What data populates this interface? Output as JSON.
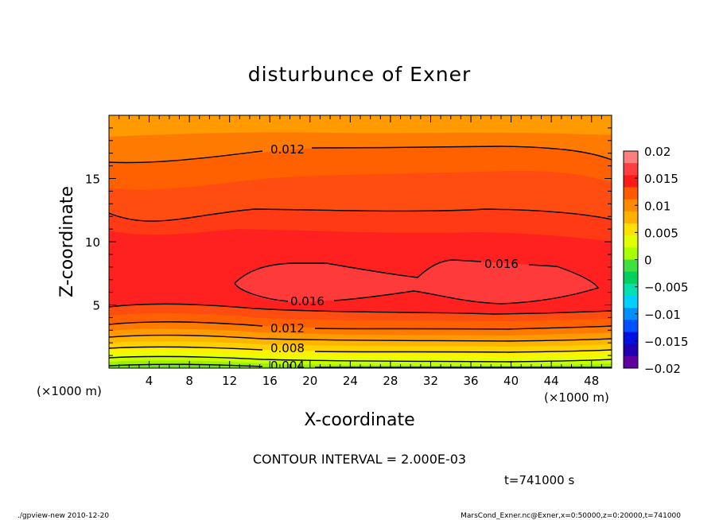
{
  "chart_data": {
    "type": "contour",
    "title": "disturbunce of Exner",
    "xlabel": "X-coordinate",
    "ylabel": "Z-coordinate",
    "x_unit": "(×1000 m)",
    "x_unit_right": "(×1000 m)",
    "y_unit": "(×1000 m)",
    "xlim": [
      0,
      50
    ],
    "ylim": [
      0,
      20
    ],
    "x_ticks": [
      "4",
      "8",
      "12",
      "16",
      "20",
      "24",
      "28",
      "32",
      "36",
      "40",
      "44",
      "48"
    ],
    "y_ticks": [
      "5",
      "10",
      "15"
    ],
    "colorbar": {
      "labels": [
        "0.02",
        "0.015",
        "0.01",
        "0.005",
        "0",
        "−0.005",
        "−0.01",
        "−0.015",
        "−0.02"
      ],
      "range": [
        -0.02,
        0.02
      ],
      "colors_top_to_bottom": [
        "#ff7f7f",
        "#ff3f3f",
        "#ff1a1a",
        "#ff5a00",
        "#ff8a00",
        "#ffb000",
        "#ffe000",
        "#e0ff00",
        "#a8ff00",
        "#40e040",
        "#00d060",
        "#00e0b0",
        "#00d0ff",
        "#0090ff",
        "#0050ff",
        "#0010e0",
        "#2000b0",
        "#6000a0"
      ]
    },
    "contour_labels": [
      {
        "text": "0.012",
        "level": 0.012
      },
      {
        "text": "0.016",
        "level": 0.016
      },
      {
        "text": "0.016",
        "level": 0.016
      },
      {
        "text": "0.012",
        "level": 0.012
      },
      {
        "text": "0.008",
        "level": 0.008
      },
      {
        "text": "0.004",
        "level": 0.004
      }
    ],
    "contour_interval_text": "CONTOUR INTERVAL = 2.000E-03",
    "time_text": "t=741000 s"
  },
  "footer": {
    "left": "./gpview-new 2010-12-20",
    "right": "MarsCond_Exner.nc@Exner,x=0:50000,z=0:20000,t=741000"
  }
}
